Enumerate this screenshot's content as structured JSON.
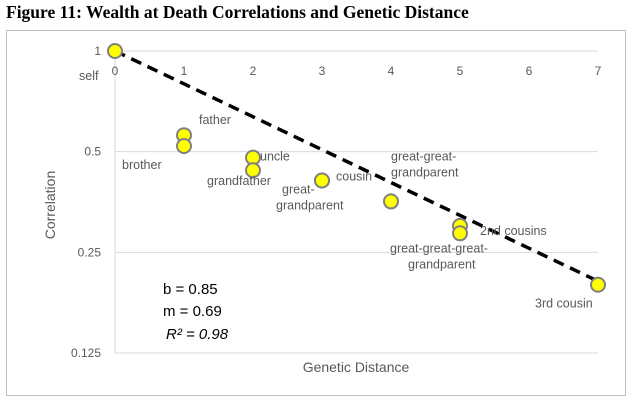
{
  "figure_title": "Figure 11:  Wealth at Death Correlations and Genetic Distance",
  "chart_data": {
    "type": "scatter",
    "xlabel": "Genetic Distance",
    "ylabel": "Correlation",
    "x_ticks": [
      "0",
      "1",
      "2",
      "3",
      "4",
      "5",
      "6",
      "7"
    ],
    "y_ticks": [
      "1",
      "0.5",
      "0.25",
      "0.125"
    ],
    "y_scale": "log2",
    "xlim": [
      0,
      7
    ],
    "ylim": [
      0.125,
      1
    ],
    "grid": "horizontal",
    "points": [
      {
        "label": "self",
        "x": 0,
        "y": 1.0
      },
      {
        "label": "father",
        "x": 1,
        "y": 0.56
      },
      {
        "label": "brother",
        "x": 1,
        "y": 0.52
      },
      {
        "label": "uncle",
        "x": 2,
        "y": 0.48
      },
      {
        "label": "grandfather",
        "x": 2,
        "y": 0.44
      },
      {
        "label": "cousin",
        "x": 3,
        "y": 0.41
      },
      {
        "label": "great-grandparent",
        "x": 3,
        "y": 0.41
      },
      {
        "label": "great-great-grandparent",
        "x": 4,
        "y": 0.355
      },
      {
        "label": "2nd cousins",
        "x": 5,
        "y": 0.3
      },
      {
        "label": "great-great-great-grandparent",
        "x": 5,
        "y": 0.285
      },
      {
        "label": "3rd cousin",
        "x": 7,
        "y": 0.2
      }
    ],
    "fit_line": {
      "style": "dashed",
      "x_start": 0,
      "x_end": 7,
      "y_start": 1.0,
      "y_end": 0.205
    },
    "stats": {
      "b": "b = 0.85",
      "m": "m = 0.69",
      "r2": "R² = 0.98"
    },
    "marker_color": "#ffff00",
    "marker_edge": "#808080",
    "line_color": "#000000"
  }
}
